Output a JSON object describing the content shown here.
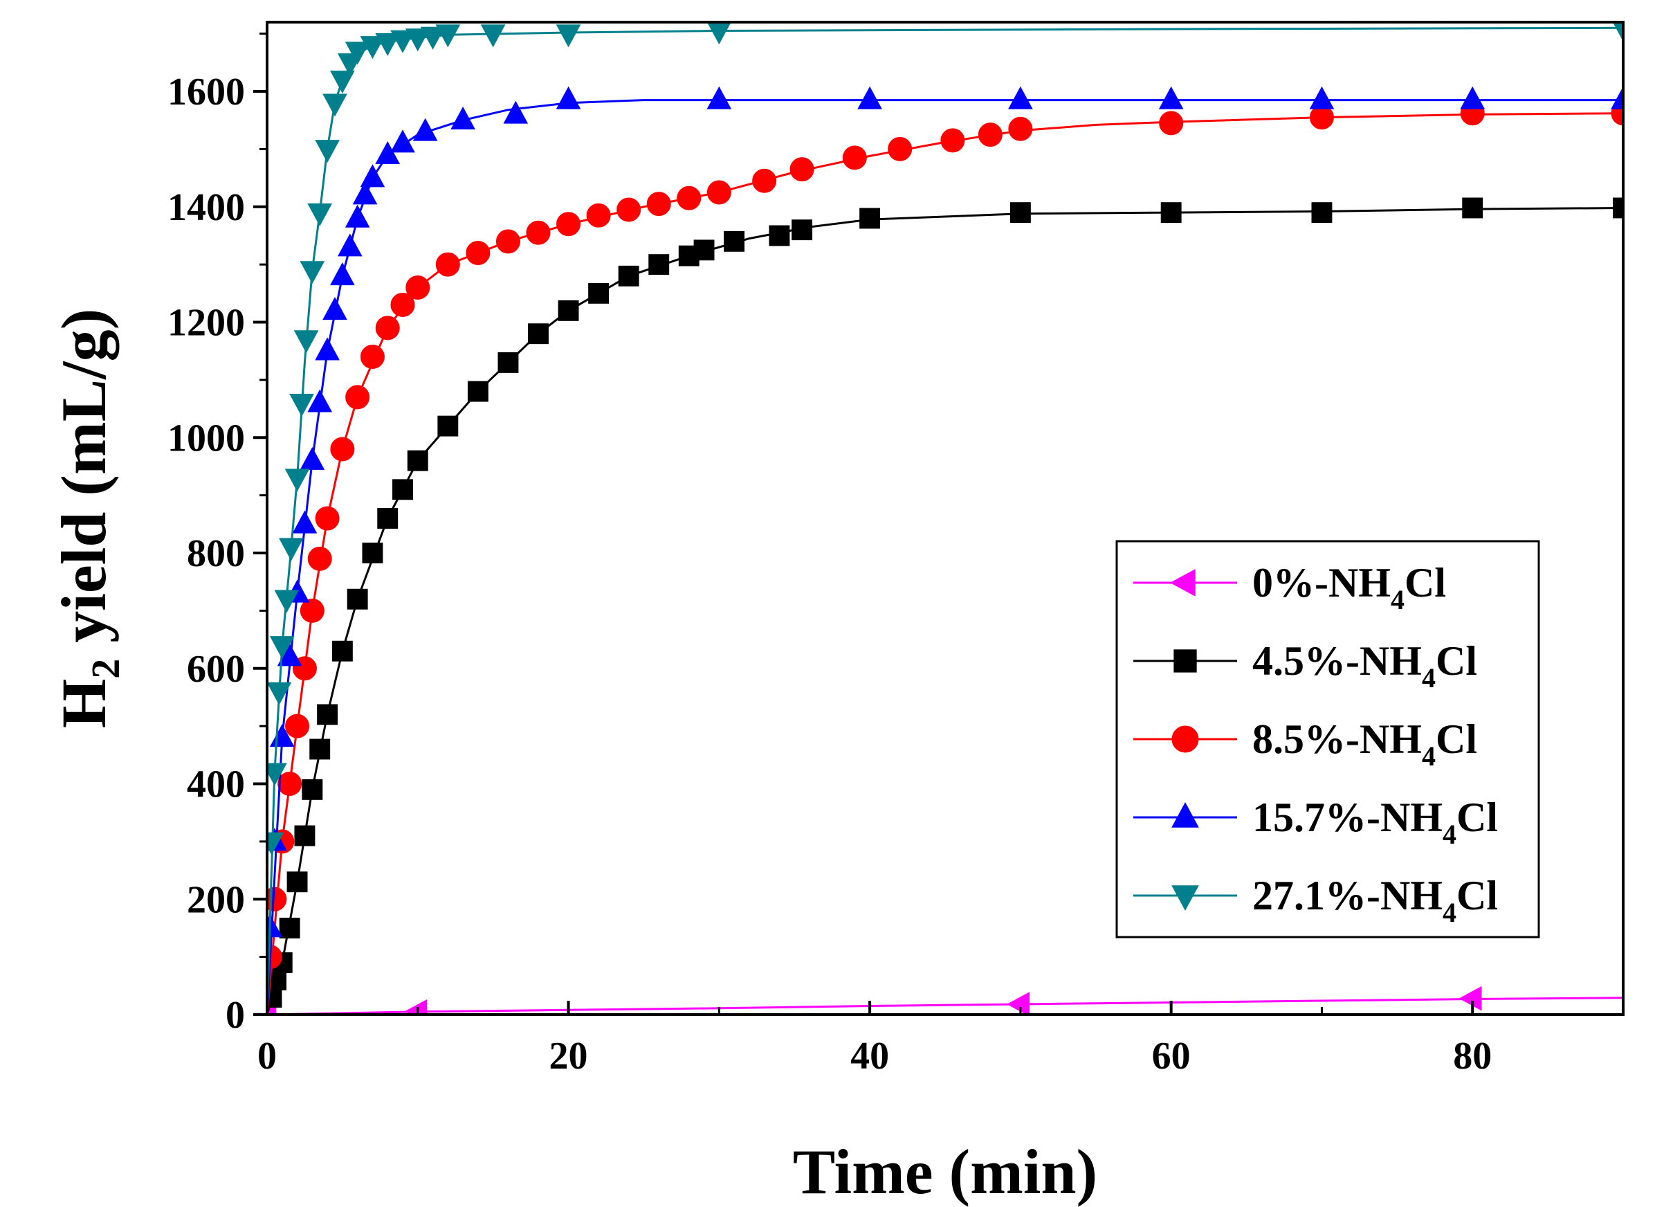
{
  "chart_data": {
    "type": "line",
    "title": "",
    "xlabel": "Time (min)",
    "ylabel": {
      "main": "H",
      "sub": "2",
      "rest": " yield (mL/g)"
    },
    "xlim": [
      0,
      90
    ],
    "ylim": [
      0,
      1720
    ],
    "x_ticks": [
      0,
      20,
      40,
      60,
      80
    ],
    "y_ticks": [
      0,
      200,
      400,
      600,
      800,
      1000,
      1200,
      1400,
      1600
    ],
    "legend_position": "center-right",
    "series": [
      {
        "name": "0%-NH4Cl",
        "label": {
          "pre": "0%-NH",
          "sub": "4",
          "post": "Cl"
        },
        "color": "#ff00ff",
        "marker": "triangle-left",
        "x": [
          0,
          10,
          50,
          80
        ],
        "y": [
          0,
          5,
          18,
          28
        ],
        "curve": [
          [
            0,
            0
          ],
          [
            10,
            5
          ],
          [
            20,
            8
          ],
          [
            30,
            11
          ],
          [
            40,
            15
          ],
          [
            50,
            18
          ],
          [
            60,
            21
          ],
          [
            70,
            24
          ],
          [
            80,
            27
          ],
          [
            90,
            29
          ]
        ]
      },
      {
        "name": "4.5%-NH4Cl",
        "label": {
          "pre": "4.5%-NH",
          "sub": "4",
          "post": "Cl"
        },
        "color": "#000000",
        "marker": "square",
        "x": [
          0.3,
          0.6,
          1,
          1.5,
          2,
          2.5,
          3,
          3.5,
          4,
          5,
          6,
          7,
          8,
          9,
          10,
          12,
          14,
          16,
          18,
          20,
          22,
          24,
          26,
          28,
          29,
          31,
          34,
          35.5,
          40,
          50,
          60,
          70,
          80,
          90
        ],
        "y": [
          30,
          60,
          90,
          150,
          230,
          310,
          390,
          460,
          520,
          630,
          720,
          800,
          860,
          910,
          960,
          1020,
          1080,
          1130,
          1180,
          1220,
          1250,
          1280,
          1300,
          1315,
          1325,
          1340,
          1350,
          1360,
          1380,
          1390,
          1390,
          1390,
          1398,
          1398
        ],
        "curve": [
          [
            0,
            0
          ],
          [
            1,
            90
          ],
          [
            2,
            230
          ],
          [
            3,
            390
          ],
          [
            4,
            520
          ],
          [
            5,
            630
          ],
          [
            6,
            720
          ],
          [
            8,
            860
          ],
          [
            10,
            960
          ],
          [
            12,
            1020
          ],
          [
            14,
            1080
          ],
          [
            16,
            1130
          ],
          [
            18,
            1180
          ],
          [
            20,
            1220
          ],
          [
            24,
            1280
          ],
          [
            28,
            1315
          ],
          [
            32,
            1345
          ],
          [
            36,
            1365
          ],
          [
            40,
            1378
          ],
          [
            50,
            1388
          ],
          [
            60,
            1390
          ],
          [
            70,
            1392
          ],
          [
            80,
            1396
          ],
          [
            90,
            1398
          ]
        ]
      },
      {
        "name": "8.5%-NH4Cl",
        "label": {
          "pre": "8.5%-NH",
          "sub": "4",
          "post": "Cl"
        },
        "color": "#ff0000",
        "marker": "circle",
        "x": [
          0.2,
          0.5,
          1,
          1.5,
          2,
          2.5,
          3,
          3.5,
          4,
          5,
          6,
          7,
          8,
          9,
          10,
          12,
          14,
          16,
          18,
          20,
          22,
          24,
          26,
          28,
          30,
          33,
          35.5,
          39,
          42,
          45.5,
          48,
          50,
          60,
          70,
          80,
          90
        ],
        "y": [
          100,
          200,
          300,
          400,
          500,
          600,
          700,
          790,
          860,
          980,
          1070,
          1140,
          1190,
          1230,
          1260,
          1300,
          1320,
          1340,
          1355,
          1370,
          1385,
          1395,
          1405,
          1415,
          1425,
          1445,
          1465,
          1485,
          1500,
          1515,
          1525,
          1535,
          1545,
          1555,
          1562,
          1562
        ],
        "curve": [
          [
            0,
            0
          ],
          [
            1,
            300
          ],
          [
            2,
            500
          ],
          [
            3,
            700
          ],
          [
            4,
            860
          ],
          [
            5,
            980
          ],
          [
            6,
            1070
          ],
          [
            8,
            1190
          ],
          [
            10,
            1260
          ],
          [
            12,
            1300
          ],
          [
            16,
            1340
          ],
          [
            20,
            1370
          ],
          [
            25,
            1400
          ],
          [
            30,
            1425
          ],
          [
            35,
            1460
          ],
          [
            40,
            1488
          ],
          [
            45,
            1512
          ],
          [
            50,
            1532
          ],
          [
            55,
            1542
          ],
          [
            60,
            1547
          ],
          [
            70,
            1555
          ],
          [
            80,
            1560
          ],
          [
            90,
            1562
          ]
        ]
      },
      {
        "name": "15.7%-NH4Cl",
        "label": {
          "pre": "15.7%-NH",
          "sub": "4",
          "post": "Cl"
        },
        "color": "#0000ff",
        "marker": "triangle-up",
        "x": [
          0.2,
          0.5,
          1,
          1.5,
          2,
          2.5,
          3,
          3.5,
          4,
          4.5,
          5,
          5.5,
          6,
          6.5,
          7,
          8,
          9,
          10.5,
          13,
          16.5,
          20,
          30,
          40,
          50,
          60,
          70,
          80,
          90
        ],
        "y": [
          150,
          300,
          480,
          620,
          730,
          850,
          960,
          1060,
          1150,
          1220,
          1280,
          1330,
          1380,
          1420,
          1450,
          1490,
          1510,
          1530,
          1550,
          1560,
          1585,
          1585,
          1585,
          1585,
          1585,
          1585,
          1585,
          1585
        ],
        "curve": [
          [
            0,
            0
          ],
          [
            1,
            480
          ],
          [
            2,
            730
          ],
          [
            3,
            960
          ],
          [
            4,
            1150
          ],
          [
            5,
            1280
          ],
          [
            6,
            1380
          ],
          [
            7,
            1450
          ],
          [
            8,
            1490
          ],
          [
            10,
            1525
          ],
          [
            13,
            1550
          ],
          [
            16,
            1568
          ],
          [
            20,
            1580
          ],
          [
            25,
            1585
          ],
          [
            30,
            1585
          ],
          [
            90,
            1585
          ]
        ]
      },
      {
        "name": "27.1%-NH4Cl",
        "label": {
          "pre": "27.1%-NH",
          "sub": "4",
          "post": "Cl"
        },
        "color": "#00808c",
        "marker": "triangle-down",
        "x": [
          0.3,
          0.5,
          0.8,
          1,
          1.3,
          1.6,
          2,
          2.3,
          2.6,
          3,
          3.5,
          4,
          4.5,
          5,
          5.5,
          6,
          7,
          8,
          9,
          10,
          11,
          12,
          15,
          20,
          30,
          90
        ],
        "y": [
          300,
          420,
          560,
          640,
          720,
          810,
          930,
          1060,
          1170,
          1290,
          1390,
          1500,
          1580,
          1620,
          1650,
          1670,
          1680,
          1685,
          1690,
          1693,
          1696,
          1700,
          1700,
          1700,
          1705,
          1710
        ],
        "curve": [
          [
            0,
            0
          ],
          [
            0.5,
            420
          ],
          [
            1,
            640
          ],
          [
            1.5,
            780
          ],
          [
            2,
            930
          ],
          [
            2.5,
            1130
          ],
          [
            3,
            1290
          ],
          [
            3.5,
            1390
          ],
          [
            4,
            1500
          ],
          [
            4.5,
            1580
          ],
          [
            5,
            1620
          ],
          [
            6,
            1665
          ],
          [
            7,
            1680
          ],
          [
            9,
            1690
          ],
          [
            12,
            1698
          ],
          [
            20,
            1702
          ],
          [
            30,
            1705
          ],
          [
            60,
            1708
          ],
          [
            90,
            1710
          ]
        ]
      }
    ]
  }
}
